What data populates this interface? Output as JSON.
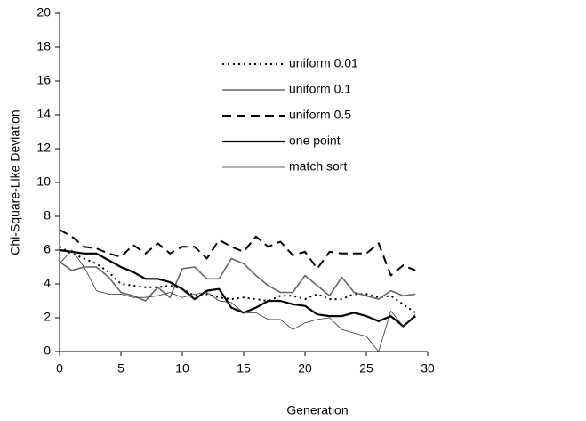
{
  "chart_data": {
    "type": "line",
    "xlabel": "Generation",
    "ylabel": "Chi-Square-Like Deviation",
    "x": [
      0,
      1,
      2,
      3,
      4,
      5,
      6,
      7,
      8,
      9,
      10,
      11,
      12,
      13,
      14,
      15,
      16,
      17,
      18,
      19,
      20,
      21,
      22,
      23,
      24,
      25,
      26,
      27,
      28,
      29
    ],
    "xlim": [
      0,
      30
    ],
    "xticks": [
      0,
      5,
      10,
      15,
      20,
      25,
      30
    ],
    "ylim": [
      0,
      20
    ],
    "yticks": [
      0,
      2,
      4,
      6,
      8,
      10,
      12,
      14,
      16,
      18,
      20
    ],
    "grid": false,
    "legend": "top",
    "series": [
      {
        "name": "uniform 0.01",
        "color": "#000000",
        "width": 2,
        "dash": "2,4",
        "values": [
          6.2,
          5.8,
          5.5,
          5.2,
          4.7,
          4.0,
          3.9,
          3.8,
          3.8,
          3.9,
          3.7,
          3.3,
          3.4,
          3.2,
          3.1,
          3.2,
          3.1,
          3.0,
          3.3,
          3.3,
          3.1,
          3.4,
          3.1,
          3.1,
          3.4,
          3.4,
          3.2,
          3.3,
          2.8,
          2.3
        ]
      },
      {
        "name": "uniform 0.1",
        "color": "#666666",
        "width": 1.6,
        "dash": "",
        "values": [
          5.3,
          4.8,
          5.0,
          5.0,
          4.4,
          3.5,
          3.3,
          3.0,
          3.8,
          3.2,
          4.9,
          5.0,
          4.3,
          4.3,
          5.5,
          5.2,
          4.5,
          3.9,
          3.5,
          3.5,
          4.5,
          3.9,
          3.3,
          4.4,
          3.5,
          3.3,
          3.1,
          3.6,
          3.3,
          3.4
        ]
      },
      {
        "name": "uniform 0.5",
        "color": "#000000",
        "width": 2,
        "dash": "10,6",
        "values": [
          7.2,
          6.8,
          6.2,
          6.1,
          5.8,
          5.6,
          6.3,
          5.8,
          6.4,
          5.8,
          6.2,
          6.2,
          5.5,
          6.6,
          6.2,
          5.9,
          6.8,
          6.2,
          6.5,
          5.7,
          5.9,
          4.9,
          5.9,
          5.8,
          5.8,
          5.8,
          6.4,
          4.5,
          5.1,
          4.8
        ]
      },
      {
        "name": "one point",
        "color": "#000000",
        "width": 2.2,
        "dash": "",
        "values": [
          6.0,
          5.9,
          5.8,
          5.8,
          5.4,
          5.0,
          4.7,
          4.3,
          4.3,
          4.1,
          3.7,
          3.1,
          3.6,
          3.7,
          2.6,
          2.3,
          2.6,
          3.0,
          3.0,
          2.8,
          2.7,
          2.2,
          2.1,
          2.1,
          2.3,
          2.1,
          1.8,
          2.1,
          1.5,
          2.1
        ]
      },
      {
        "name": "match sort",
        "color": "#333333",
        "width": 0.8,
        "dash": "",
        "values": [
          5.2,
          6.0,
          5.0,
          3.6,
          3.4,
          3.4,
          3.2,
          3.2,
          3.3,
          3.5,
          3.2,
          3.4,
          3.5,
          3.0,
          2.9,
          2.3,
          2.3,
          1.9,
          1.9,
          1.3,
          1.7,
          1.9,
          2.0,
          1.3,
          1.1,
          0.9,
          0.0,
          2.4,
          1.5,
          2.2
        ]
      }
    ]
  }
}
